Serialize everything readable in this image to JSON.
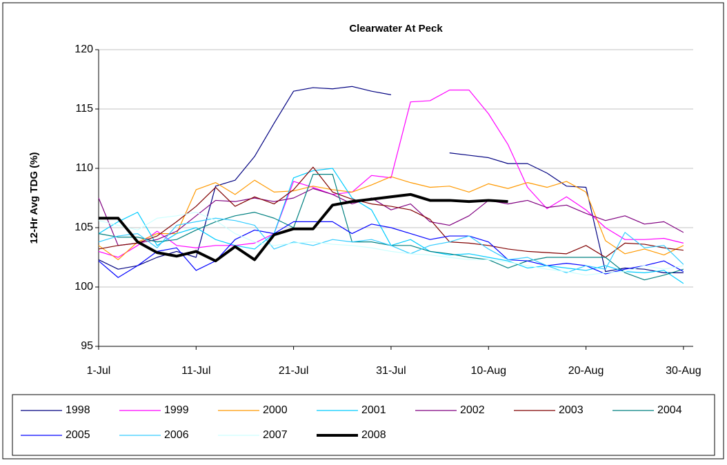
{
  "chart_data": {
    "type": "line",
    "title": "Clearwater At Peck",
    "y_label": "12-Hr Avg TDG (%)",
    "x": [
      0,
      2,
      4,
      6,
      8,
      10,
      12,
      14,
      16,
      18,
      20,
      22,
      24,
      26,
      28,
      30,
      32,
      34,
      36,
      38,
      40,
      42,
      44,
      46,
      48,
      50,
      52,
      54,
      56,
      58,
      60
    ],
    "xlim": [
      0,
      61
    ],
    "xticks": [
      {
        "value": 0,
        "label": "1-Jul"
      },
      {
        "value": 10,
        "label": "11-Jul"
      },
      {
        "value": 20,
        "label": "21-Jul"
      },
      {
        "value": 30,
        "label": "31-Jul"
      },
      {
        "value": 40,
        "label": "10-Aug"
      },
      {
        "value": 50,
        "label": "20-Aug"
      },
      {
        "value": 60,
        "label": "30-Aug"
      }
    ],
    "ylim": [
      95,
      120
    ],
    "yticks": [
      95,
      100,
      105,
      110,
      115,
      120
    ],
    "grid": true,
    "legend": "bottom",
    "series": [
      {
        "name": "1998",
        "color": "#000080",
        "width": 1.2,
        "values": [
          102.3,
          101.5,
          101.8,
          102.5,
          103,
          102.5,
          108.5,
          109,
          111,
          113.8,
          116.5,
          116.8,
          116.7,
          116.9,
          116.5,
          116.2,
          null,
          null,
          111.3,
          111.1,
          110.9,
          110.4,
          110.4,
          109.6,
          108.5,
          108.4,
          101.3,
          101.6,
          101.5,
          101.2,
          101.2
        ]
      },
      {
        "name": "1999",
        "color": "#ff00ff",
        "width": 1.2,
        "values": [
          103,
          102.5,
          103.5,
          104.7,
          103.5,
          103.3,
          103.5,
          103.5,
          103.7,
          104.5,
          108.9,
          108.4,
          107.8,
          108,
          109.4,
          109.2,
          115.6,
          115.7,
          116.6,
          116.6,
          114.6,
          112,
          108.4,
          106.6,
          107.6,
          106.5,
          105,
          104,
          104,
          104.1,
          103.7
        ]
      },
      {
        "name": "2000",
        "color": "#ff9900",
        "width": 1.2,
        "values": [
          103.5,
          102.3,
          103.8,
          104.5,
          104.5,
          108.2,
          108.8,
          107.8,
          109,
          108,
          108.1,
          108.5,
          108.2,
          108,
          108.6,
          109.3,
          108.8,
          108.4,
          108.5,
          108,
          108.7,
          108.3,
          108.8,
          108.4,
          108.9,
          108,
          103.9,
          102.8,
          103.2,
          102.7,
          103.5
        ]
      },
      {
        "name": "2001",
        "color": "#00ccff",
        "width": 1.2,
        "values": [
          104.5,
          105.5,
          106.3,
          103.5,
          104.5,
          105,
          104,
          103.5,
          103.2,
          104.5,
          109.2,
          109.8,
          110,
          107.5,
          106.5,
          103.5,
          104,
          103,
          102.7,
          102.8,
          102.5,
          102.2,
          101.6,
          101.8,
          101.6,
          101.4,
          101.8,
          101.3,
          101.2,
          101.4,
          100.3
        ]
      },
      {
        "name": "2002",
        "color": "#800080",
        "width": 1.2,
        "values": [
          107.5,
          103.5,
          103.7,
          104,
          104.7,
          106,
          107.3,
          107.2,
          107.5,
          107.2,
          107.5,
          108.3,
          107.8,
          107,
          107.5,
          106.5,
          107,
          105.5,
          105.2,
          106,
          107.3,
          107,
          107.3,
          106.7,
          106.9,
          106.2,
          105.6,
          106,
          105.3,
          105.5,
          104.6
        ]
      },
      {
        "name": "2003",
        "color": "#800000",
        "width": 1.2,
        "values": [
          103.2,
          103.5,
          103.7,
          104.3,
          105.5,
          106.8,
          108.4,
          106.8,
          107.6,
          107,
          108.2,
          110.1,
          108,
          107.4,
          107,
          106.8,
          106.5,
          105.7,
          103.8,
          103.7,
          103.5,
          103.2,
          103,
          102.9,
          102.8,
          103.5,
          102.5,
          103.7,
          103.6,
          103.3,
          103.1
        ]
      },
      {
        "name": "2004",
        "color": "#008080",
        "width": 1.2,
        "values": [
          104.5,
          104.2,
          104.2,
          103.8,
          104,
          104.8,
          105.5,
          106,
          106.3,
          105.8,
          105,
          109.5,
          109.5,
          103.8,
          103.8,
          103.5,
          103.5,
          103,
          102.8,
          102.5,
          102.3,
          101.6,
          102.2,
          102.5,
          102.5,
          102.5,
          102.5,
          101.2,
          100.6,
          101,
          101.5
        ]
      },
      {
        "name": "2005",
        "color": "#0000ff",
        "width": 1.2,
        "values": [
          102.2,
          100.8,
          101.8,
          103,
          103.3,
          101.4,
          102.2,
          104,
          104.8,
          104.5,
          105.5,
          105.5,
          105.5,
          104.5,
          105.3,
          105,
          104.5,
          104,
          104.3,
          104.3,
          103.8,
          102.3,
          102.2,
          101.8,
          102,
          101.8,
          101.1,
          101.5,
          101.8,
          102.2,
          101.3
        ]
      },
      {
        "name": "2006",
        "color": "#33ccff",
        "width": 1.2,
        "values": [
          103.8,
          104.3,
          104.5,
          103.3,
          105.2,
          105.5,
          105.8,
          105.6,
          105.2,
          103.2,
          103.8,
          103.5,
          104,
          103.8,
          104,
          103.5,
          102.8,
          103.5,
          103.8,
          104.3,
          103.2,
          102.3,
          102.5,
          101.8,
          101.2,
          101.8,
          101.5,
          104.6,
          103.3,
          103.5,
          101.9
        ]
      },
      {
        "name": "2007",
        "color": "#ccffff",
        "width": 1.2,
        "values": [
          105.6,
          105.2,
          104.8,
          105.8,
          106,
          106.3,
          105.6,
          104.5,
          103.8,
          103.5,
          103.7,
          103.8,
          103.6,
          103.5,
          103.3,
          103,
          102.8,
          102.7,
          102.5,
          102.3,
          102.3,
          102.1,
          101.8,
          101.5,
          101.3,
          101,
          101.2,
          101.3,
          101.8,
          101.5,
          101.8
        ]
      },
      {
        "name": "2008",
        "color": "#000000",
        "width": 4,
        "values": [
          105.8,
          105.8,
          103.8,
          102.9,
          102.6,
          103,
          102.2,
          103.4,
          102.3,
          104.4,
          104.9,
          104.9,
          106.9,
          107.2,
          107.4,
          107.6,
          107.8,
          107.3,
          107.3,
          107.2,
          107.3,
          107.2,
          null,
          null,
          null,
          null,
          null,
          null,
          null,
          null,
          null
        ]
      }
    ]
  }
}
